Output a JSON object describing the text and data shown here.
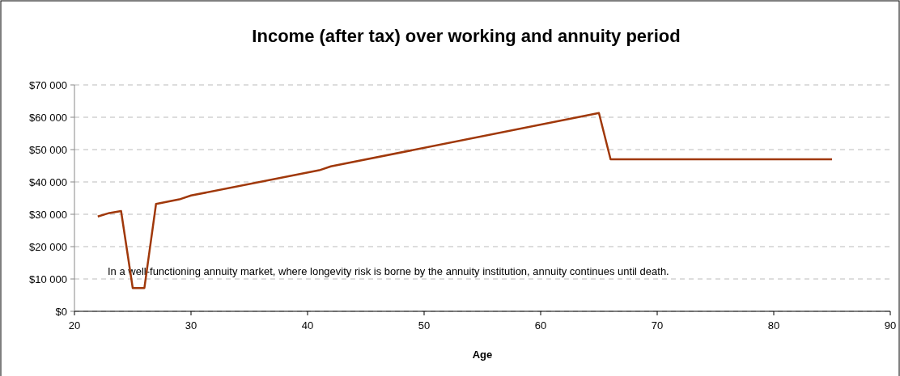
{
  "chart_data": {
    "type": "line",
    "title": "Income (after tax) over working and annuity period",
    "xlabel": "Age",
    "x": [
      22,
      23,
      24,
      25,
      26,
      27,
      29,
      30,
      41,
      42,
      65,
      66,
      85
    ],
    "series": [
      {
        "color": "#a0380a",
        "values": [
          29300,
          30400,
          31000,
          7200,
          7200,
          33200,
          34600,
          35800,
          43600,
          44800,
          61300,
          47000,
          47000
        ]
      }
    ],
    "xlim": [
      20,
      90
    ],
    "xticks": [
      20,
      30,
      40,
      50,
      60,
      70,
      80,
      90
    ],
    "ylim": [
      0,
      70000
    ],
    "yticks": [
      {
        "value": 0,
        "label": "$0"
      },
      {
        "value": 10000,
        "label": "$10 000"
      },
      {
        "value": 20000,
        "label": "$20 000"
      },
      {
        "value": 30000,
        "label": "$30 000"
      },
      {
        "value": 40000,
        "label": "$40 000"
      },
      {
        "value": 50000,
        "label": "$50 000"
      },
      {
        "value": 60000,
        "label": "$60 000"
      },
      {
        "value": 70000,
        "label": "$70 000"
      }
    ],
    "grid": "y",
    "marker": "none",
    "line_style": "solid",
    "annotations": [
      "In a well-functioning annuity market, where longevity risk is borne by the annuity institution, annuity continues until death."
    ]
  }
}
